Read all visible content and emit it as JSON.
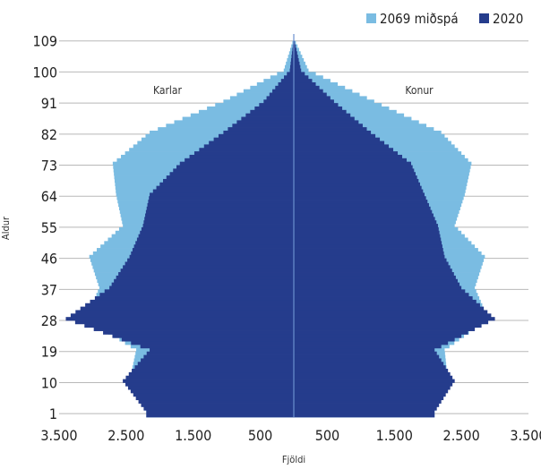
{
  "chart_data": {
    "type": "population-pyramid",
    "title": "",
    "xlabel": "Fjöldi",
    "ylabel": "Aldur",
    "side_labels": {
      "left": "Karlar",
      "right": "Konur"
    },
    "x_tick_labels": [
      "3.500",
      "2.500",
      "1.500",
      "500",
      "500",
      "1.500",
      "2.500",
      "3.500"
    ],
    "x_tick_values": [
      -3500,
      -2500,
      -1500,
      -500,
      500,
      1500,
      2500,
      3500
    ],
    "xlim": [
      -3500,
      3500
    ],
    "y_ticks": [
      1,
      10,
      19,
      28,
      37,
      46,
      55,
      64,
      73,
      82,
      91,
      100,
      109
    ],
    "ylim": [
      0,
      111
    ],
    "grid": "horizontal",
    "legend_position": "top-right",
    "series": [
      {
        "name": "2069 miðspá",
        "color": "#7ABCE2",
        "ages": [
          1,
          10,
          19,
          28,
          37,
          46,
          55,
          64,
          73,
          82,
          91,
          100,
          109
        ],
        "males": [
          2200,
          2450,
          2350,
          3100,
          2900,
          3050,
          2550,
          2650,
          2700,
          2150,
          1050,
          150,
          5
        ],
        "females": [
          2100,
          2300,
          2250,
          2900,
          2700,
          2850,
          2400,
          2550,
          2650,
          2200,
          1200,
          220,
          8
        ]
      },
      {
        "name": "2020",
        "color": "#253C8C",
        "ages": [
          1,
          10,
          19,
          28,
          37,
          46,
          55,
          64,
          73,
          82,
          91,
          100,
          109
        ],
        "males": [
          2200,
          2550,
          2150,
          3400,
          2750,
          2450,
          2250,
          2150,
          1700,
          1050,
          450,
          60,
          2
        ],
        "females": [
          2100,
          2400,
          2100,
          3000,
          2500,
          2250,
          2150,
          1950,
          1750,
          1150,
          600,
          110,
          4
        ]
      }
    ]
  }
}
